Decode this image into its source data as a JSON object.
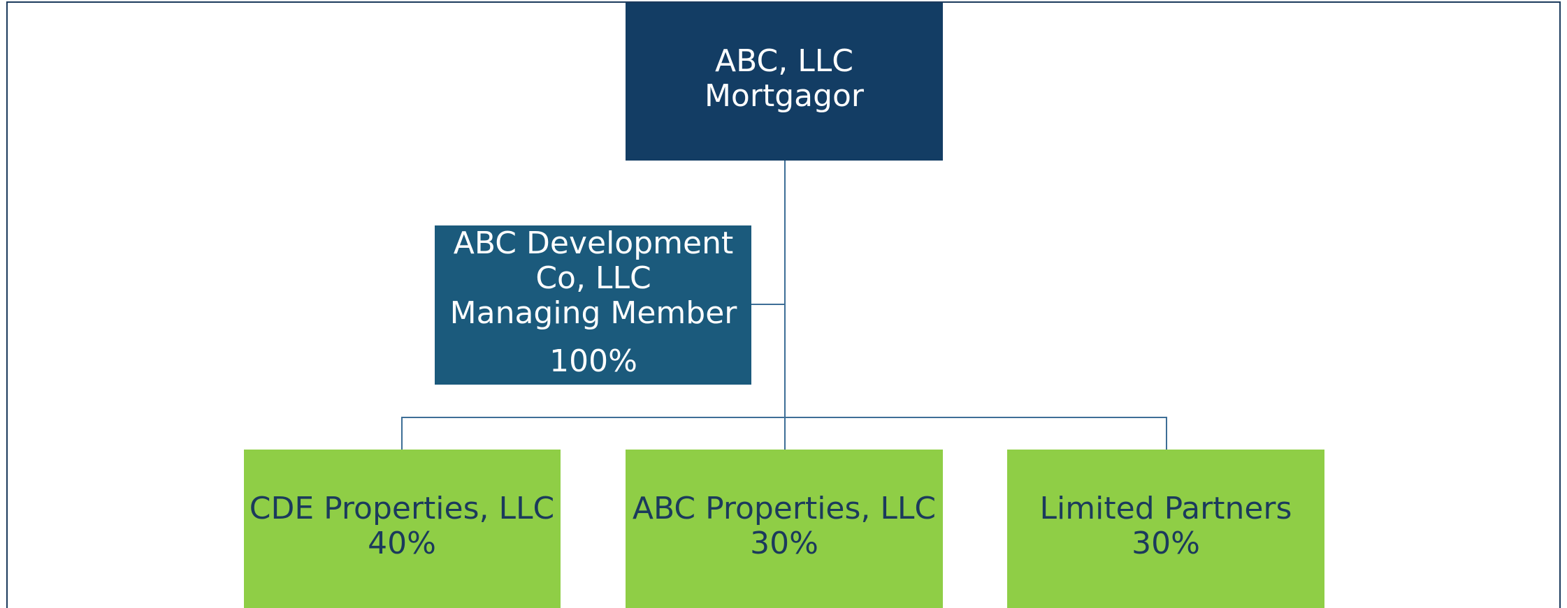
{
  "nodes": [
    {
      "lines": [
        "ABC, LLC",
        "Mortgagor"
      ]
    },
    {
      "lines": [
        "ABC Development",
        "Co, LLC",
        "Managing Member",
        "100%"
      ]
    },
    {
      "lines": [
        "CDE Properties, LLC",
        "40%"
      ]
    },
    {
      "lines": [
        "ABC Properties, LLC",
        "30%"
      ]
    },
    {
      "lines": [
        "Limited Partners",
        "30%"
      ]
    }
  ]
}
